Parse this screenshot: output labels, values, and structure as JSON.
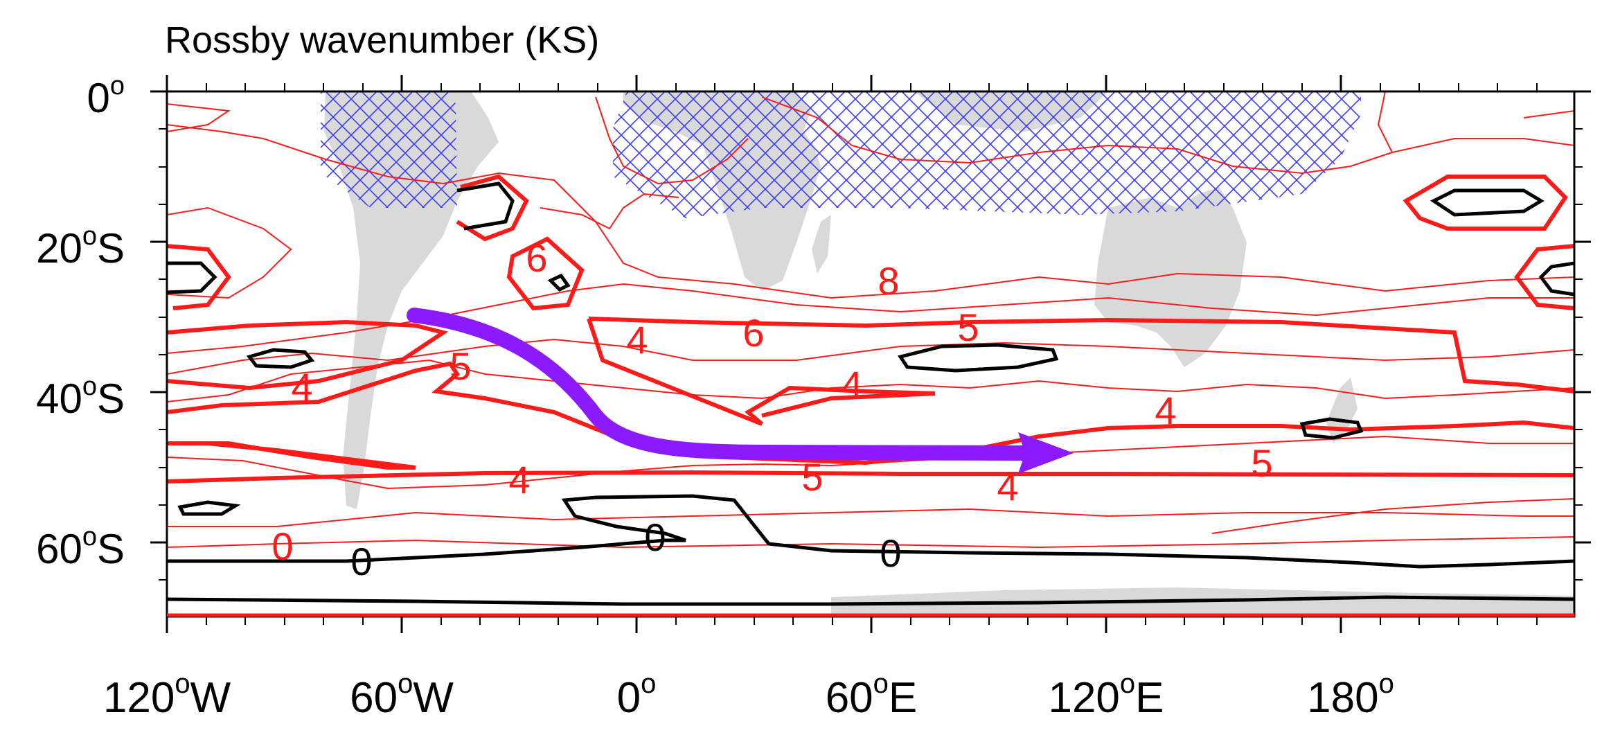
{
  "title": "Rossby wavenumber (KS)",
  "lat_labels": [
    {
      "deg": "0",
      "hemi": ""
    },
    {
      "deg": "20",
      "hemi": "S"
    },
    {
      "deg": "40",
      "hemi": "S"
    },
    {
      "deg": "60",
      "hemi": "S"
    }
  ],
  "lon_labels": [
    {
      "deg": "120",
      "hemi": "W"
    },
    {
      "deg": "60",
      "hemi": "W"
    },
    {
      "deg": "0",
      "hemi": ""
    },
    {
      "deg": "60",
      "hemi": "E"
    },
    {
      "deg": "120",
      "hemi": "E"
    },
    {
      "deg": "180",
      "hemi": ""
    }
  ],
  "contour_labels": [
    "6",
    "8",
    "6",
    "5",
    "4",
    "5",
    "4",
    "4",
    "4",
    "5",
    "5",
    "4",
    "4",
    "0",
    "0",
    "0"
  ],
  "colors": {
    "contour": "#ff1a1a",
    "zero_contour": "#000000",
    "hatch": "#3a3aff",
    "land": "#d9d9d9",
    "arrow": "#8b1aff",
    "frame": "#000000"
  }
}
